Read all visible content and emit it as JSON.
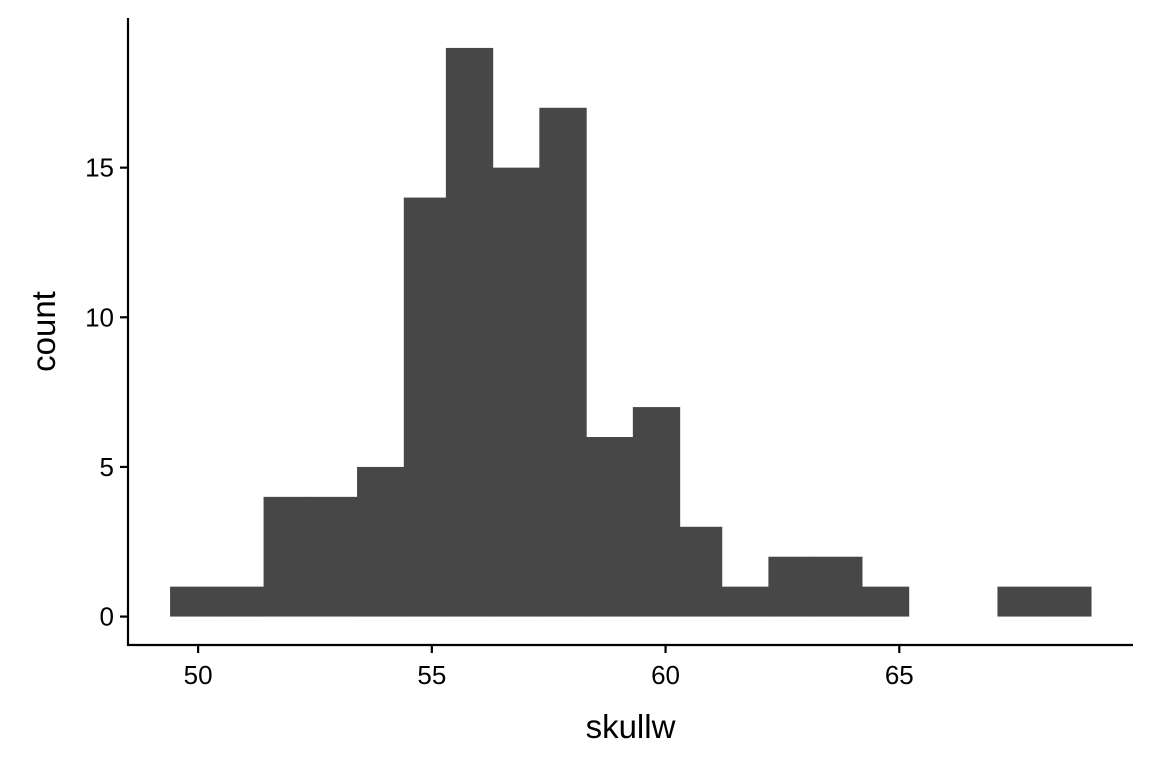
{
  "chart_data": {
    "type": "bar",
    "subtype": "histogram",
    "title": "",
    "xlabel": "skullw",
    "ylabel": "count",
    "xlim": [
      48.5,
      70
    ],
    "ylim": [
      -0.95,
      20
    ],
    "x_ticks": [
      50,
      55,
      60,
      65
    ],
    "y_ticks": [
      0,
      5,
      10,
      15
    ],
    "bin_width": 0.985,
    "bins": [
      {
        "start": 49.4,
        "end": 50.4,
        "count": 1
      },
      {
        "start": 50.4,
        "end": 51.4,
        "count": 1
      },
      {
        "start": 51.4,
        "end": 52.4,
        "count": 4
      },
      {
        "start": 52.4,
        "end": 53.4,
        "count": 4
      },
      {
        "start": 53.4,
        "end": 54.4,
        "count": 5
      },
      {
        "start": 54.4,
        "end": 55.3,
        "count": 14
      },
      {
        "start": 55.3,
        "end": 56.3,
        "count": 19
      },
      {
        "start": 56.3,
        "end": 57.3,
        "count": 15
      },
      {
        "start": 57.3,
        "end": 58.3,
        "count": 17
      },
      {
        "start": 58.3,
        "end": 59.3,
        "count": 6
      },
      {
        "start": 59.3,
        "end": 60.3,
        "count": 7
      },
      {
        "start": 60.3,
        "end": 61.2,
        "count": 3
      },
      {
        "start": 61.2,
        "end": 62.2,
        "count": 1
      },
      {
        "start": 62.2,
        "end": 63.2,
        "count": 2
      },
      {
        "start": 63.2,
        "end": 64.2,
        "count": 2
      },
      {
        "start": 64.2,
        "end": 65.2,
        "count": 1
      },
      {
        "start": 65.2,
        "end": 66.2,
        "count": 0
      },
      {
        "start": 66.2,
        "end": 67.1,
        "count": 0
      },
      {
        "start": 67.1,
        "end": 68.1,
        "count": 1
      },
      {
        "start": 68.1,
        "end": 69.1,
        "count": 1
      }
    ],
    "colors": {
      "bar": "#474747",
      "axis": "#000000",
      "background": "#ffffff"
    },
    "grid": false,
    "legend": "none"
  }
}
